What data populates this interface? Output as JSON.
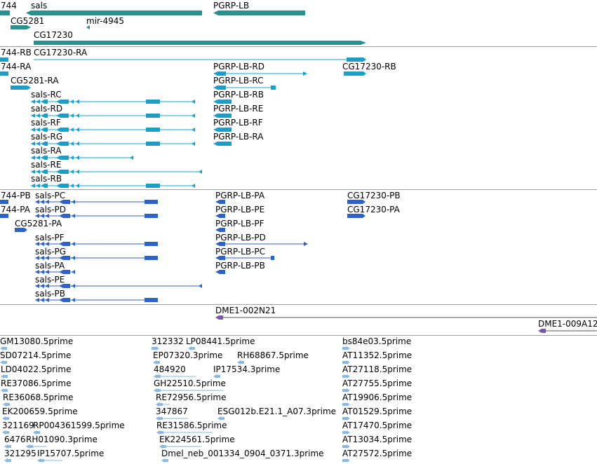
{
  "colors": {
    "gene": "#2a8f8f",
    "transcript": "#1aa0c8",
    "cds": "#2e62c8",
    "clone": "#7b55b0",
    "est": "#8ab8e0",
    "divider": "#a0a0a0"
  },
  "gene_track": {
    "features": [
      {
        "label": "744",
        "strand": "+"
      },
      {
        "label": "sals",
        "strand": "-"
      },
      {
        "label": "PGRP-LB",
        "strand": "-"
      },
      {
        "label": "CG5281",
        "strand": "+"
      },
      {
        "label": "mir-4945",
        "strand": "-"
      },
      {
        "label": "CG17230",
        "strand": "+"
      }
    ]
  },
  "transcript_track": {
    "features": [
      {
        "label": "744-RB"
      },
      {
        "label": "CG17230-RA"
      },
      {
        "label": "744-RA"
      },
      {
        "label": "PGRP-LB-RD"
      },
      {
        "label": "CG17230-RB"
      },
      {
        "label": "CG5281-RA"
      },
      {
        "label": "PGRP-LB-RC"
      },
      {
        "label": "sals-RC"
      },
      {
        "label": "PGRP-LB-RB"
      },
      {
        "label": "sals-RD"
      },
      {
        "label": "PGRP-LB-RE"
      },
      {
        "label": "sals-RF"
      },
      {
        "label": "PGRP-LB-RF"
      },
      {
        "label": "sals-RG"
      },
      {
        "label": "PGRP-LB-RA"
      },
      {
        "label": "sals-RA"
      },
      {
        "label": "sals-RE"
      },
      {
        "label": "sals-RB"
      }
    ]
  },
  "cds_track": {
    "features": [
      {
        "label": "744-PB"
      },
      {
        "label": "sals-PC"
      },
      {
        "label": "PGRP-LB-PA"
      },
      {
        "label": "CG17230-PB"
      },
      {
        "label": "744-PA"
      },
      {
        "label": "sals-PD"
      },
      {
        "label": "PGRP-LB-PE"
      },
      {
        "label": "CG17230-PA"
      },
      {
        "label": "CG5281-PA"
      },
      {
        "label": "PGRP-LB-PF"
      },
      {
        "label": "sals-PF"
      },
      {
        "label": "PGRP-LB-PD"
      },
      {
        "label": "sals-PG"
      },
      {
        "label": "PGRP-LB-PC"
      },
      {
        "label": "sals-PA"
      },
      {
        "label": "PGRP-LB-PB"
      },
      {
        "label": "sals-PE"
      },
      {
        "label": "sals-PB"
      }
    ]
  },
  "clone_track": {
    "features": [
      {
        "label": "DME1-002N21"
      },
      {
        "label": "DME1-009A12"
      }
    ]
  },
  "est_track": {
    "features": [
      {
        "label": "GM13080.5prime"
      },
      {
        "label": "312332"
      },
      {
        "label": "LP08441.5prime"
      },
      {
        "label": "bs84e03.5prime"
      },
      {
        "label": "SD07214.5prime"
      },
      {
        "label": "EP07320.3prime"
      },
      {
        "label": "RH68867.5prime"
      },
      {
        "label": "AT11352.5prime"
      },
      {
        "label": "LD04022.5prime"
      },
      {
        "label": "484920"
      },
      {
        "label": "IP17534.3prime"
      },
      {
        "label": "AT27118.5prime"
      },
      {
        "label": "RE37086.5prime"
      },
      {
        "label": "GH22510.5prime"
      },
      {
        "label": "AT27755.5prime"
      },
      {
        "label": "RE36068.5prime"
      },
      {
        "label": "RE72956.5prime"
      },
      {
        "label": "AT19906.5prime"
      },
      {
        "label": "EK200659.5prime"
      },
      {
        "label": "347867"
      },
      {
        "label": "ESG012b.E21.1_A07.3prime"
      },
      {
        "label": "AT01529.5prime"
      },
      {
        "label": "321169"
      },
      {
        "label": "RP004361599.5prime"
      },
      {
        "label": "RE31586.5prime"
      },
      {
        "label": "AT17470.5prime"
      },
      {
        "label": "6476"
      },
      {
        "label": "RH01090.3prime"
      },
      {
        "label": "EK224561.5prime"
      },
      {
        "label": "AT13034.5prime"
      },
      {
        "label": "321295"
      },
      {
        "label": "IP15707.5prime"
      },
      {
        "label": "Dmel_neb_001334_0904_0371.3prime"
      },
      {
        "label": "AT27572.5prime"
      }
    ]
  }
}
